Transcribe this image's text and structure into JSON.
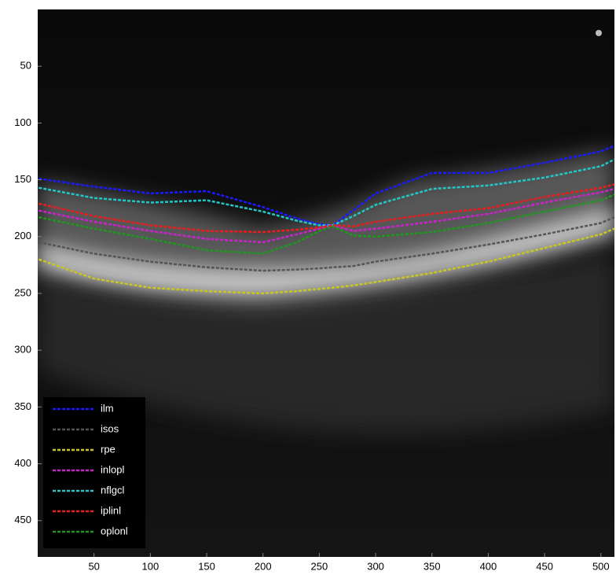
{
  "chart_data": {
    "type": "line",
    "x": [
      1,
      50,
      100,
      150,
      200,
      230,
      250,
      262,
      280,
      300,
      350,
      400,
      450,
      500,
      512
    ],
    "series": [
      {
        "name": "ilm",
        "color": "#1a1aff",
        "values": [
          149,
          156,
          162,
          160,
          174,
          184,
          189,
          190,
          177,
          162,
          144,
          144,
          135,
          125,
          120
        ]
      },
      {
        "name": "isos",
        "color": "#555555",
        "values": [
          205,
          215,
          222,
          227,
          230,
          229,
          228,
          227,
          226,
          222,
          215,
          207,
          198,
          188,
          183
        ]
      },
      {
        "name": "rpe",
        "color": "#c8c820",
        "values": [
          220,
          237,
          245,
          248,
          250,
          248,
          246,
          245,
          243,
          240,
          232,
          222,
          210,
          198,
          193
        ]
      },
      {
        "name": "inlopl",
        "color": "#cc22cc",
        "values": [
          177,
          187,
          195,
          202,
          205,
          198,
          193,
          190,
          195,
          193,
          187,
          180,
          170,
          161,
          158
        ]
      },
      {
        "name": "nflgcl",
        "color": "#22c8c8",
        "values": [
          157,
          166,
          170,
          168,
          178,
          186,
          190,
          190,
          182,
          172,
          158,
          155,
          148,
          138,
          132
        ]
      },
      {
        "name": "iplinl",
        "color": "#ee1c1c",
        "values": [
          171,
          182,
          190,
          195,
          196,
          194,
          192,
          190,
          191,
          187,
          180,
          175,
          165,
          157,
          154
        ]
      },
      {
        "name": "oplonl",
        "color": "#1c9a1c",
        "values": [
          183,
          193,
          202,
          212,
          215,
          205,
          195,
          191,
          199,
          200,
          196,
          188,
          178,
          168,
          163
        ]
      }
    ],
    "xlim": [
      0,
      512
    ],
    "xticks": [
      50,
      100,
      150,
      200,
      250,
      300,
      350,
      400,
      450,
      500
    ],
    "ylim": [
      0,
      482
    ],
    "yticks": [
      50,
      100,
      150,
      200,
      250,
      300,
      350,
      400,
      450
    ],
    "y_reversed": true,
    "legend": "lower left"
  }
}
